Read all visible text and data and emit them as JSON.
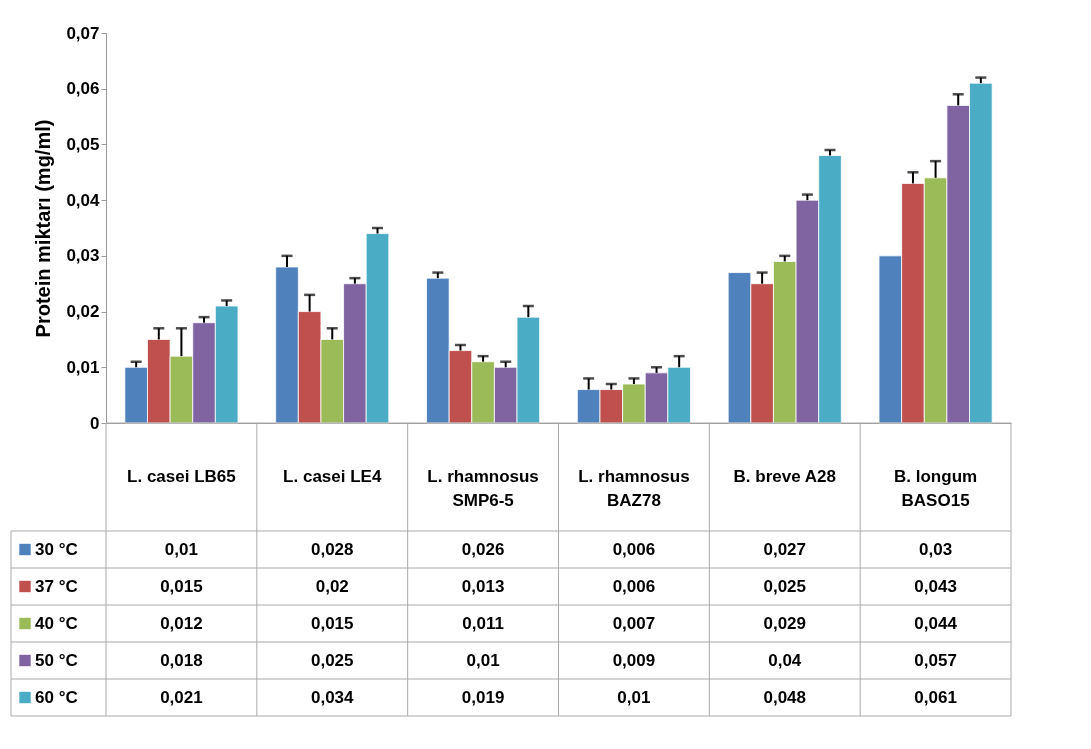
{
  "chart_data": {
    "type": "bar",
    "ylabel": "Protein miktarı (mg/ml)",
    "categories": [
      "L. casei LB65",
      "L. casei LE4",
      "L. rhamnosus SMP6-5",
      "L. rhamnosus BAZ78",
      "B. breve A28",
      "B. longum BASO15"
    ],
    "series": [
      {
        "name": "30 °C",
        "color": "#4f81bd",
        "values": [
          0.01,
          0.028,
          0.026,
          0.006,
          0.027,
          0.03
        ],
        "value_labels": [
          "0,01",
          "0,028",
          "0,026",
          "0,006",
          "0,027",
          "0,03"
        ],
        "errors": [
          [
            0.01,
            0.011
          ],
          [
            0.028,
            0.03
          ],
          [
            0.026,
            0.027
          ],
          [
            0.006,
            0.008
          ],
          null,
          null
        ]
      },
      {
        "name": "37 °C",
        "color": "#c0504d",
        "values": [
          0.015,
          0.02,
          0.013,
          0.006,
          0.025,
          0.043
        ],
        "value_labels": [
          "0,015",
          "0,02",
          "0,013",
          "0,006",
          "0,025",
          "0,043"
        ],
        "errors": [
          [
            0.015,
            0.017
          ],
          [
            0.02,
            0.023
          ],
          [
            0.013,
            0.014
          ],
          [
            0.006,
            0.007
          ],
          [
            0.025,
            0.027
          ],
          [
            0.043,
            0.045
          ]
        ]
      },
      {
        "name": "40 °C",
        "color": "#9bbb59",
        "values": [
          0.012,
          0.015,
          0.011,
          0.007,
          0.029,
          0.044
        ],
        "value_labels": [
          "0,012",
          "0,015",
          "0,011",
          "0,007",
          "0,029",
          "0,044"
        ],
        "errors": [
          [
            0.012,
            0.017
          ],
          [
            0.015,
            0.017
          ],
          [
            0.011,
            0.012
          ],
          [
            0.007,
            0.008
          ],
          [
            0.029,
            0.03
          ],
          [
            0.044,
            0.047
          ]
        ]
      },
      {
        "name": "50 °C",
        "color": "#8064a2",
        "values": [
          0.018,
          0.025,
          0.01,
          0.009,
          0.04,
          0.057
        ],
        "value_labels": [
          "0,018",
          "0,025",
          "0,01",
          "0,009",
          "0,04",
          "0,057"
        ],
        "errors": [
          [
            0.018,
            0.019
          ],
          [
            0.025,
            0.026
          ],
          [
            0.01,
            0.011
          ],
          [
            0.009,
            0.01
          ],
          [
            0.04,
            0.041
          ],
          [
            0.057,
            0.059
          ]
        ]
      },
      {
        "name": "60 °C",
        "color": "#4bacc6",
        "values": [
          0.021,
          0.034,
          0.019,
          0.01,
          0.048,
          0.061
        ],
        "value_labels": [
          "0,021",
          "0,034",
          "0,019",
          "0,01",
          "0,048",
          "0,061"
        ],
        "errors": [
          [
            0.021,
            0.022
          ],
          [
            0.034,
            0.035
          ],
          [
            0.019,
            0.021
          ],
          [
            0.01,
            0.012
          ],
          [
            0.048,
            0.049
          ],
          [
            0.061,
            0.062
          ]
        ]
      }
    ],
    "ylim": [
      0,
      0.07
    ],
    "yticks": [
      0,
      {
        "value": 0.01,
        "label": "0,01"
      },
      {
        "value": 0.02,
        "label": "0,02"
      },
      {
        "value": 0.03,
        "label": "0,03"
      },
      {
        "value": 0.04,
        "label": "0,04"
      },
      {
        "value": 0.05,
        "label": "0,05"
      },
      {
        "value": 0.06,
        "label": "0,06"
      },
      {
        "value": 0.07,
        "label": "0,07"
      }
    ],
    "legend": "bottom left",
    "grid": false
  }
}
